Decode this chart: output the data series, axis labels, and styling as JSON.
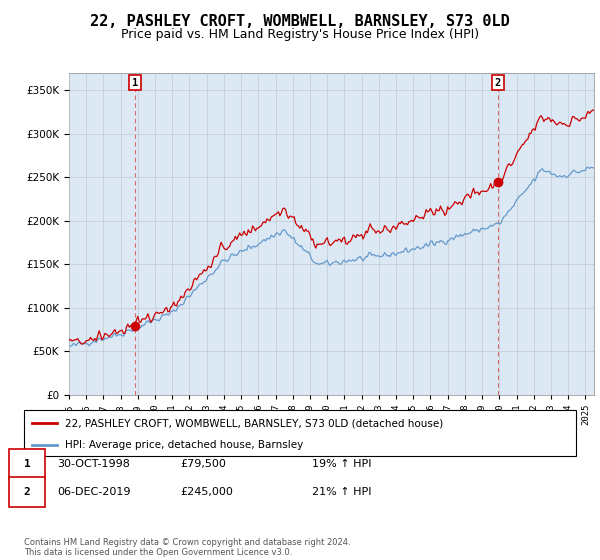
{
  "title": "22, PASHLEY CROFT, WOMBWELL, BARNSLEY, S73 0LD",
  "subtitle": "Price paid vs. HM Land Registry's House Price Index (HPI)",
  "title_fontsize": 11,
  "subtitle_fontsize": 9,
  "ylim": [
    0,
    370000
  ],
  "yticks": [
    0,
    50000,
    100000,
    150000,
    200000,
    250000,
    300000,
    350000
  ],
  "sale1_date_num": 1998.83,
  "sale1_price": 79500,
  "sale1_date_str": "30-OCT-1998",
  "sale1_hpi_pct": "19% ↑ HPI",
  "sale2_date_num": 2019.92,
  "sale2_price": 245000,
  "sale2_date_str": "06-DEC-2019",
  "sale2_hpi_pct": "21% ↑ HPI",
  "property_color": "#cc0000",
  "hpi_color": "#6699cc",
  "plot_bg_color": "#dce9f5",
  "legend_property_label": "22, PASHLEY CROFT, WOMBWELL, BARNSLEY, S73 0LD (detached house)",
  "legend_hpi_label": "HPI: Average price, detached house, Barnsley",
  "footnote": "Contains HM Land Registry data © Crown copyright and database right 2024.\nThis data is licensed under the Open Government Licence v3.0.",
  "background_color": "#ffffff",
  "grid_color": "#c0c8d0",
  "xmin": 1995,
  "xmax": 2025.5,
  "n_months": 373
}
